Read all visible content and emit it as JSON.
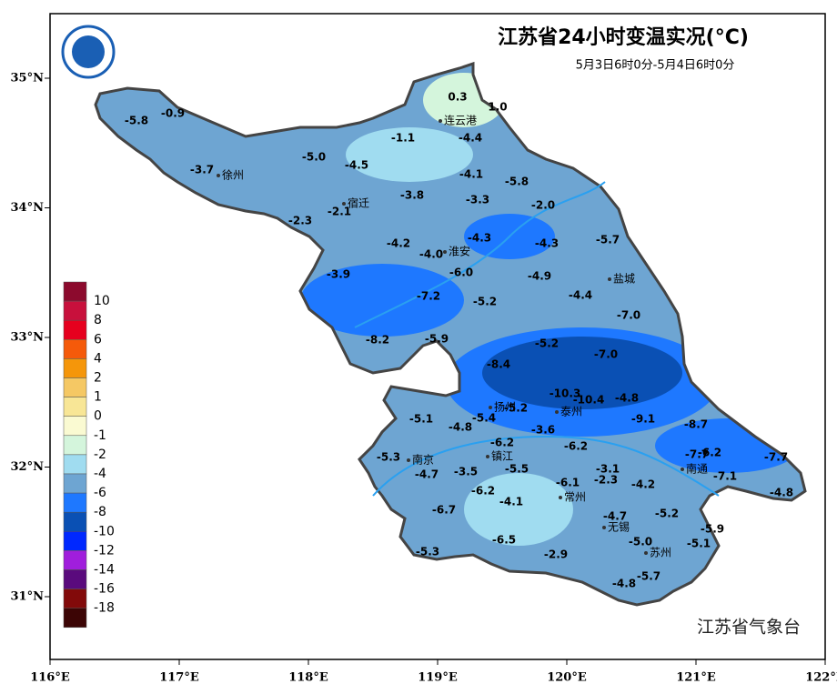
{
  "header": {
    "title": "江苏省24小时变温实况(°C)",
    "subtitle": "5月3日6时0分-5月4日6时0分"
  },
  "map": {
    "xticks": [
      "116°E",
      "117°E",
      "118°E",
      "119°E",
      "120°E",
      "121°E",
      "122°E"
    ],
    "yticks": [
      "35°N",
      "34°N",
      "33°N",
      "32°N",
      "31°N"
    ]
  },
  "cities": [
    "连云港",
    "徐州",
    "宿迁",
    "淮安",
    "盐城",
    "扬州",
    "泰州",
    "南京",
    "镇江",
    "南通",
    "常州",
    "无锡",
    "苏州"
  ],
  "stations": [
    "0.3",
    "1.0",
    "-5.8",
    "-0.9",
    "-1.1",
    "-4.4",
    "-5.0",
    "-4.5",
    "-3.7",
    "-4.1",
    "-5.8",
    "-3.8",
    "-3.3",
    "-2.0",
    "-2.1",
    "-2.3",
    "-4.3",
    "-4.2",
    "-4.3",
    "-5.7",
    "-4.0",
    "-3.9",
    "-6.0",
    "-4.9",
    "-7.2",
    "-5.2",
    "-4.4",
    "-7.0",
    "-8.2",
    "-5.9",
    "-5.2",
    "-7.0",
    "-8.4",
    "-10.3",
    "-10.4",
    "-4.8",
    "-5.2",
    "-9.1",
    "-8.7",
    "-5.1",
    "-4.8",
    "-5.4",
    "-3.6",
    "-6.2",
    "-6.2",
    "-5.3",
    "-7.7",
    "-6.2",
    "-7.7",
    "-4.7",
    "-3.5",
    "-5.5",
    "-3.1",
    "-7.1",
    "-6.1",
    "-2.3",
    "-4.2",
    "-4.8",
    "-6.2",
    "-4.1",
    "-6.7",
    "-5.2",
    "-4.7",
    "-5.9",
    "-6.5",
    "-5.0",
    "-5.1",
    "-5.3",
    "-2.9",
    "-5.7",
    "-4.8"
  ],
  "legend": {
    "colors": [
      "#8c0a2d",
      "#c8103c",
      "#e6001e",
      "#f55a0a",
      "#f5960a",
      "#f5c864",
      "#f8e696",
      "#fafad2",
      "#d4f5dc",
      "#a0dcf0",
      "#6ea5d2",
      "#1e78ff",
      "#0a50b4",
      "#0028ff",
      "#a01edc",
      "#5a0a7d",
      "#820a0a",
      "#3c0505"
    ],
    "labels": [
      10,
      8,
      6,
      4,
      2,
      1,
      0,
      -1,
      -2,
      -4,
      -6,
      -8,
      -10,
      -12,
      -14,
      -16,
      -18
    ]
  },
  "footer": {
    "agency": "江苏省气象台"
  }
}
